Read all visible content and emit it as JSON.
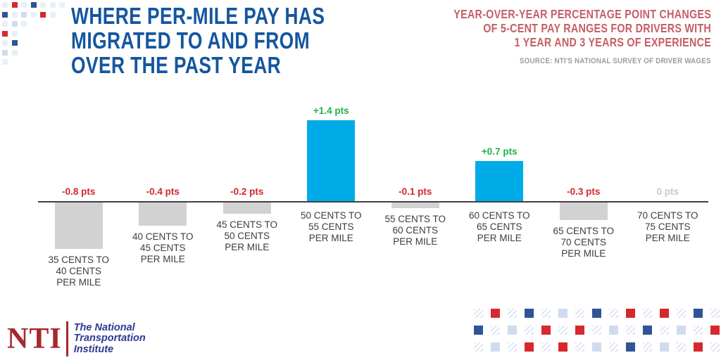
{
  "chart_data": {
    "type": "bar",
    "title": "WHERE PER-MILE PAY HAS\nMIGRATED TO AND FROM\nOVER THE PAST YEAR",
    "subtitle": "YEAR-OVER-YEAR PERCENTAGE POINT CHANGES\nOF 5-CENT PAY RANGES FOR DRIVERS WITH\n1 YEAR AND 3 YEARS OF EXPERIENCE",
    "source": "SOURCE: NTI'S NATIONAL SURVEY OF DRIVER WAGES",
    "unit": "percentage points",
    "baseline": 0,
    "ylim": [
      -0.9,
      1.5
    ],
    "grid": false,
    "legend": false,
    "categories": [
      "35 CENTS TO\n40 CENTS\nPER MILE",
      "40 CENTS TO\n45 CENTS\nPER MILE",
      "45 CENTS TO\n50 CENTS\nPER MILE",
      "50 CENTS TO\n55 CENTS\nPER MILE",
      "55 CENTS TO\n60 CENTS\nPER MILE",
      "60 CENTS TO\n65 CENTS\nPER MILE",
      "65 CENTS TO\n70 CENTS\nPER MILE",
      "70 CENTS TO\n75 CENTS\nPER MILE"
    ],
    "values": [
      -0.8,
      -0.4,
      -0.2,
      1.4,
      -0.1,
      0.7,
      -0.3,
      0
    ],
    "value_labels": [
      "-0.8 pts",
      "-0.4 pts",
      "-0.2 pts",
      "+1.4 pts",
      "-0.1 pts",
      "+0.7 pts",
      "-0.3 pts",
      "0 pts"
    ],
    "colors": {
      "positive_bar": "#00ace8",
      "negative_bar": "#d2d2d2",
      "positive_label": "#22b04b",
      "negative_label": "#d2272e",
      "zero_label": "#c9c9c9",
      "axis_line": "#404040",
      "title": "#1456a0",
      "subtitle": "#c55f67"
    }
  },
  "footer": {
    "logo_text": "NTI",
    "org_name": "The National\nTransportation\nInstitute"
  },
  "decor": {
    "palette": {
      "r": "#d7282f",
      "b": "#2e5597",
      "l": "#cfdcf0",
      "v": "#eaf0f8"
    },
    "top_left": [
      "vrvbvvv",
      "bvlvrv.",
      "vlv....",
      "rv.....",
      "vb.....",
      "lv.....",
      "v......"
    ],
    "bottom_right": [
      "hrhbhlhbhrhrhbh",
      "bhlhrhrhlhbhlhr",
      "hlhrhrhlhbhlhrh"
    ]
  }
}
